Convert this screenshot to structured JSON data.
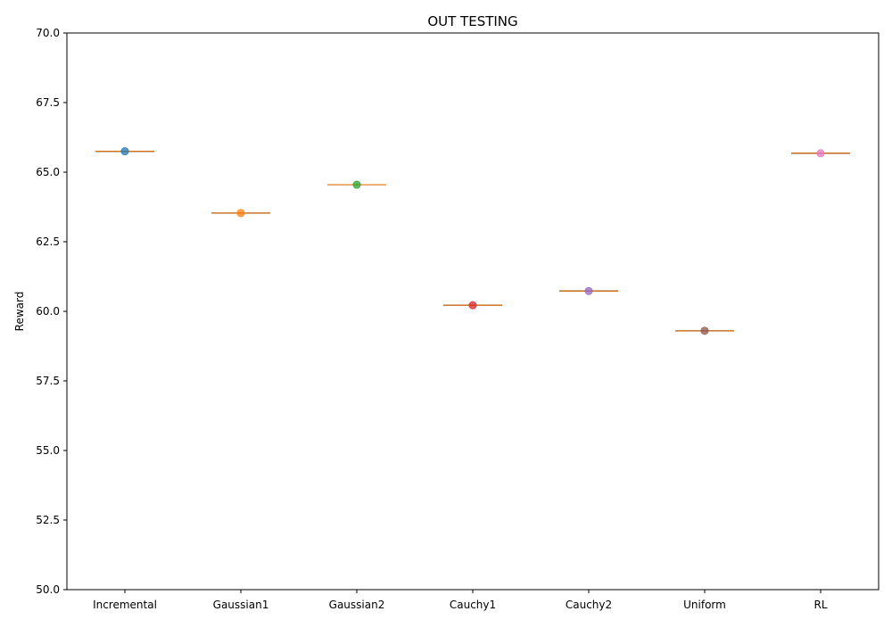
{
  "chart_data": {
    "type": "box",
    "title": "OUT TESTING",
    "xlabel": "",
    "ylabel": "Reward",
    "ylim": [
      50.0,
      70.0
    ],
    "yticks": [
      "50.0",
      "52.5",
      "55.0",
      "57.5",
      "60.0",
      "62.5",
      "65.0",
      "67.5",
      "70.0"
    ],
    "ytick_values": [
      50.0,
      52.5,
      55.0,
      57.5,
      60.0,
      62.5,
      65.0,
      67.5,
      70.0
    ],
    "categories": [
      "Incremental",
      "Gaussian1",
      "Gaussian2",
      "Cauchy1",
      "Cauchy2",
      "Uniform",
      "RL"
    ],
    "values": [
      65.75,
      63.53,
      64.55,
      60.22,
      60.73,
      59.3,
      65.68
    ],
    "point_colors": [
      "#1f77b4",
      "#ff7f0e",
      "#2ca02c",
      "#d62728",
      "#9467bd",
      "#8c564b",
      "#e377c2"
    ],
    "median_color": "#ff7f0e",
    "grid": false,
    "legend": "none"
  }
}
